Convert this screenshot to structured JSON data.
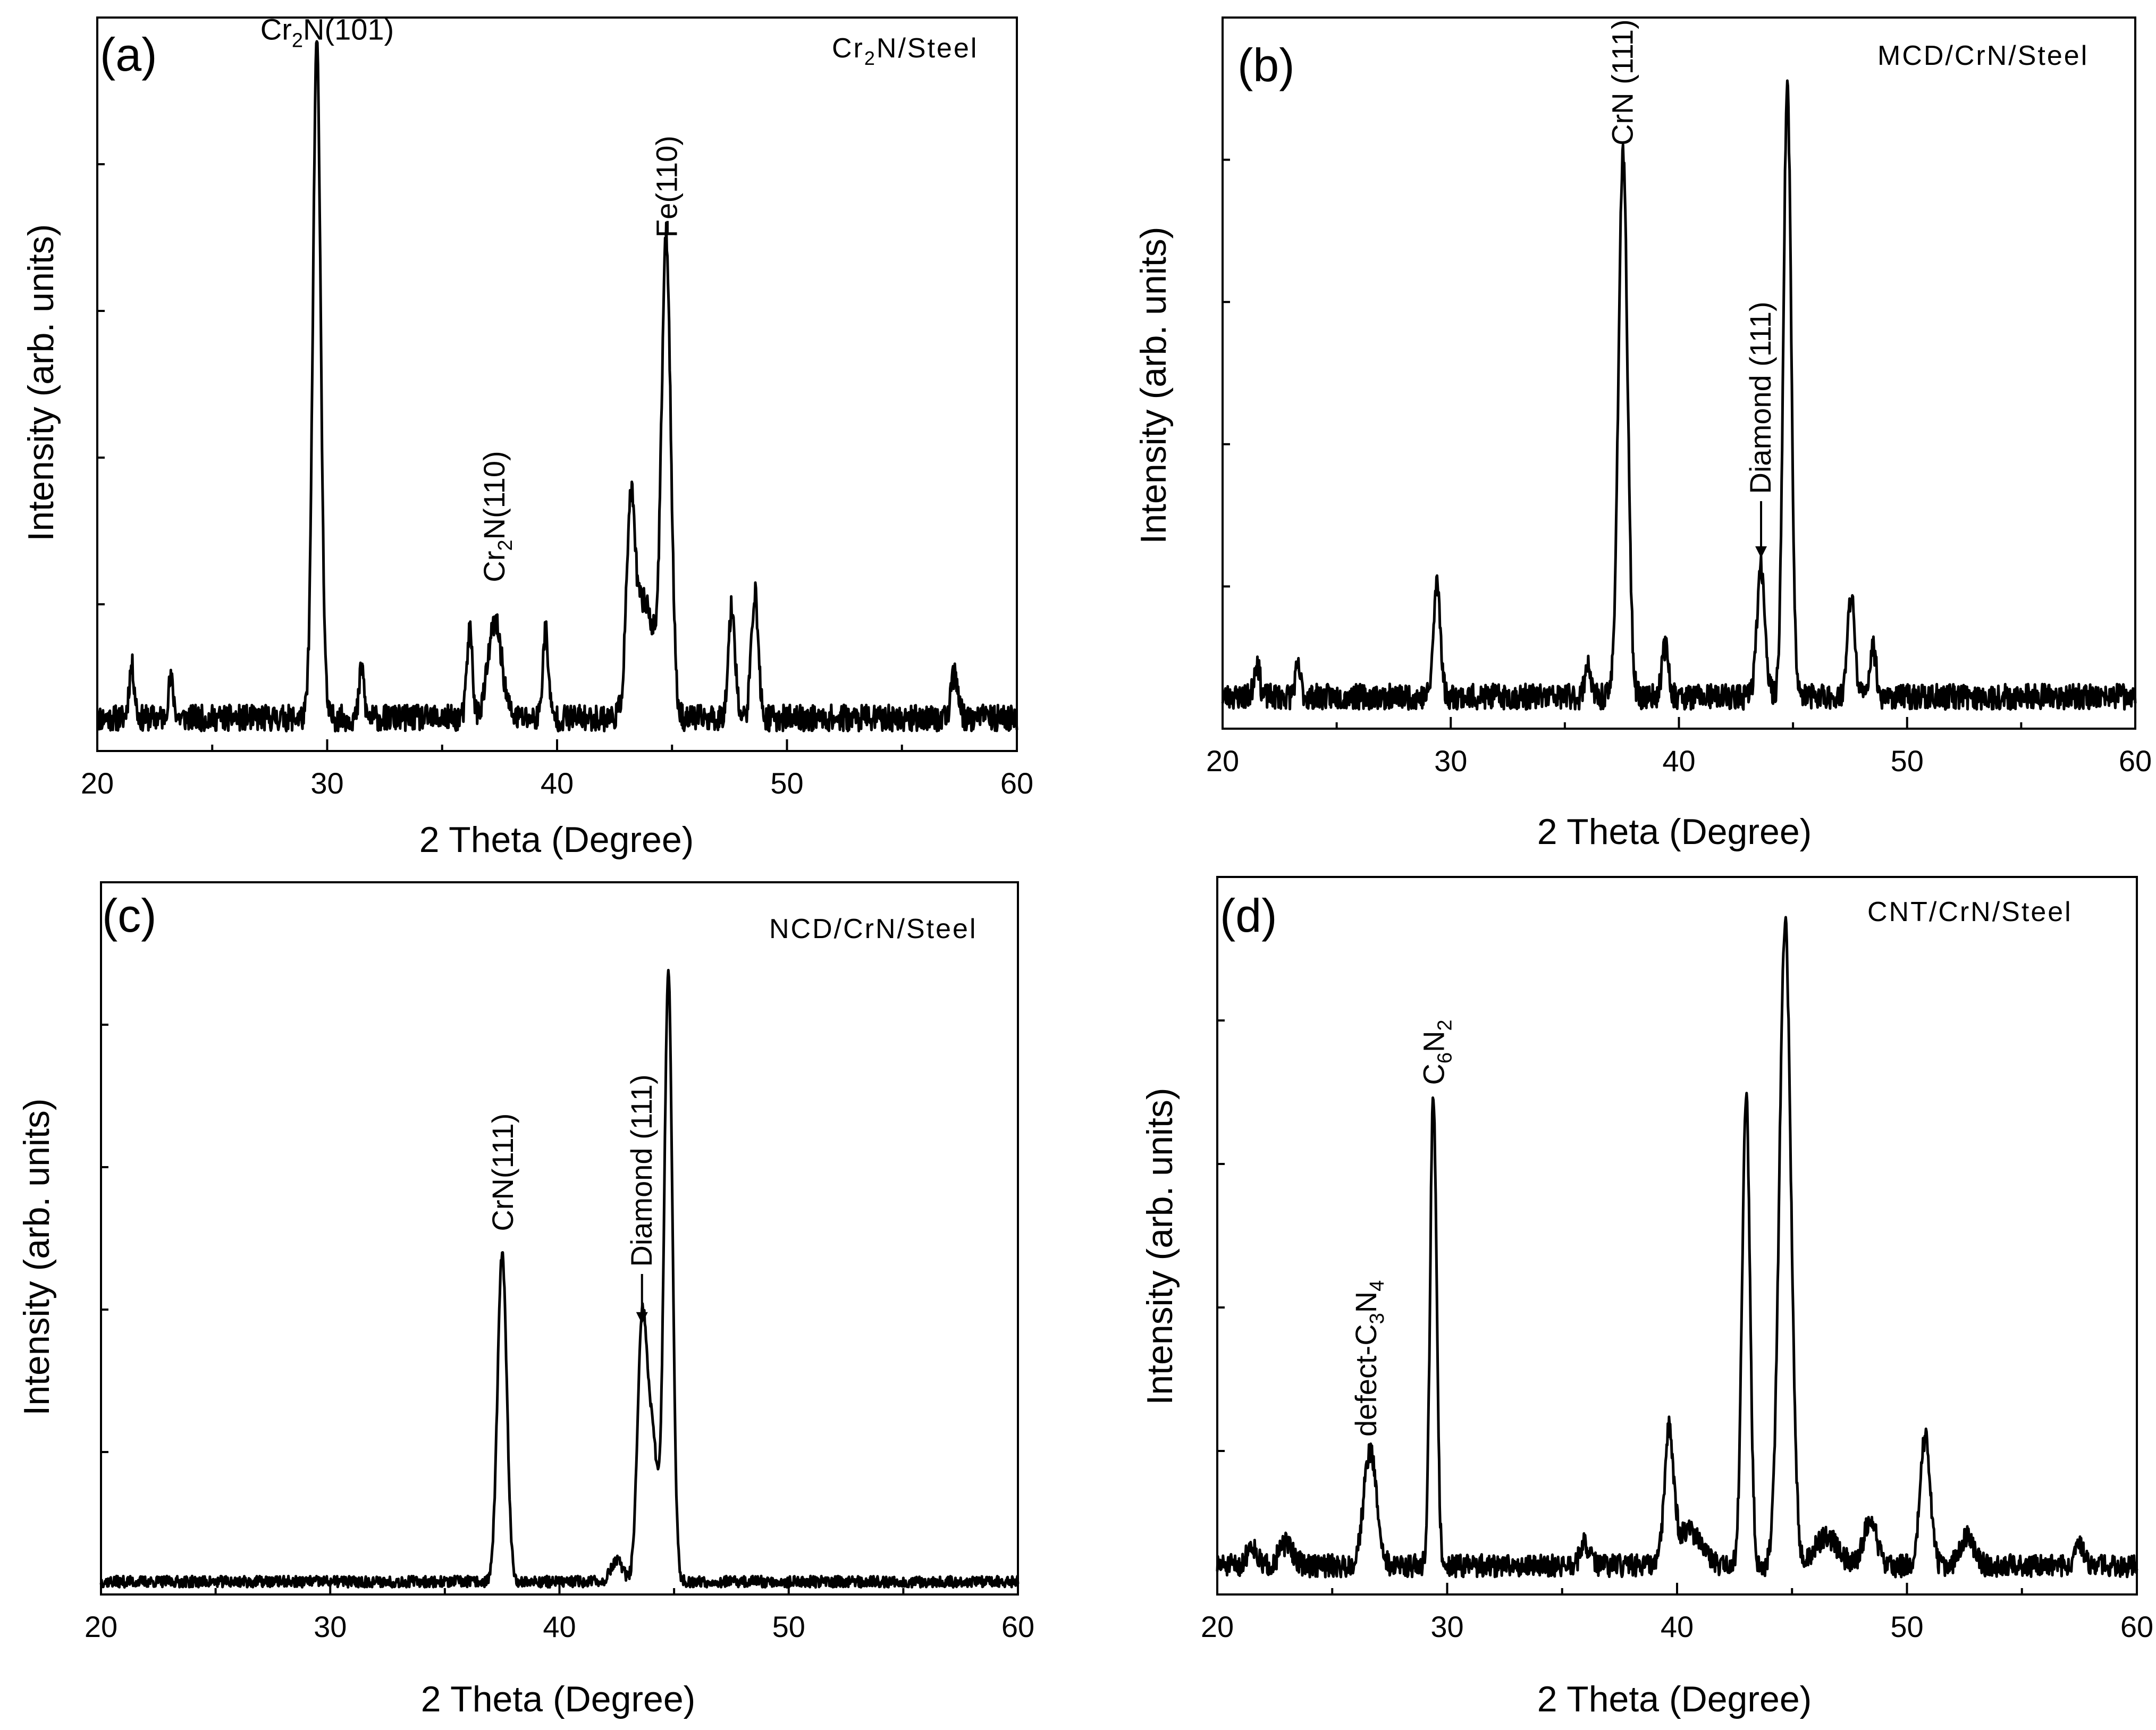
{
  "figure": {
    "background": "#ffffff",
    "line_color": "#000000"
  },
  "chart_data": [
    {
      "type": "line",
      "panel": "(a)",
      "sample": {
        "base": "Cr",
        "sub": "2",
        "rest": "N/Steel"
      },
      "xlabel": "2 Theta (Degree)",
      "ylabel": "Intensity (arb. units)",
      "xlim": [
        20,
        60
      ],
      "ylim": [
        0,
        100
      ],
      "xticks": [
        "20",
        "30",
        "40",
        "50",
        "60"
      ],
      "baseline": 4.5,
      "noise": 1.8,
      "seed": 11,
      "peaks": [
        {
          "x": 21.5,
          "h": 7,
          "w": 0.12
        },
        {
          "x": 23.2,
          "h": 5,
          "w": 0.12
        },
        {
          "x": 29.55,
          "h": 92,
          "w": 0.17
        },
        {
          "x": 31.5,
          "h": 7,
          "w": 0.1
        },
        {
          "x": 36.2,
          "h": 12,
          "w": 0.12
        },
        {
          "x": 37.3,
          "h": 13,
          "w": 0.3
        },
        {
          "x": 39.5,
          "h": 12,
          "w": 0.12
        },
        {
          "x": 43.2,
          "h": 24,
          "w": 0.18
        },
        {
          "x": 43.8,
          "h": 16,
          "w": 0.45
        },
        {
          "x": 44.75,
          "h": 64,
          "w": 0.2
        },
        {
          "x": 47.6,
          "h": 15,
          "w": 0.15
        },
        {
          "x": 48.6,
          "h": 17,
          "w": 0.15
        },
        {
          "x": 57.3,
          "h": 6,
          "w": 0.15
        }
      ],
      "annotations": [
        {
          "base": "Cr",
          "sub": "2",
          "rest": "N(101)",
          "x": 30.0,
          "y": 97,
          "rotate": false
        },
        {
          "base": "Cr",
          "sub": "2",
          "rest": "N(110)",
          "x": 37.3,
          "y": 23,
          "rotate": true
        },
        {
          "base": "Fe(110)",
          "sub": "",
          "rest": "",
          "x": 44.8,
          "y": 70,
          "rotate": true
        }
      ]
    },
    {
      "type": "line",
      "panel": "(b)",
      "sample": {
        "base": "MCD/CrN/Steel",
        "sub": "",
        "rest": ""
      },
      "xlabel": "2 Theta (Degree)",
      "ylabel": "Intensity (arb. units)",
      "xlim": [
        20,
        60
      ],
      "ylim": [
        0,
        100
      ],
      "xticks": [
        "20",
        "30",
        "40",
        "50",
        "60"
      ],
      "baseline": 4.5,
      "noise": 1.8,
      "seed": 23,
      "peaks": [
        {
          "x": 21.5,
          "h": 5,
          "w": 0.12
        },
        {
          "x": 23.3,
          "h": 4,
          "w": 0.12
        },
        {
          "x": 29.4,
          "h": 16,
          "w": 0.15
        },
        {
          "x": 36.0,
          "h": 5,
          "w": 0.12
        },
        {
          "x": 37.55,
          "h": 76,
          "w": 0.2
        },
        {
          "x": 39.4,
          "h": 7,
          "w": 0.15
        },
        {
          "x": 43.6,
          "h": 18,
          "w": 0.18
        },
        {
          "x": 44.75,
          "h": 86,
          "w": 0.17
        },
        {
          "x": 47.55,
          "h": 14,
          "w": 0.16
        },
        {
          "x": 48.5,
          "h": 7,
          "w": 0.14
        }
      ],
      "annotations": [
        {
          "base": "CrN (111)",
          "sub": "",
          "rest": "",
          "x": 37.55,
          "y": 82,
          "rotate": true
        },
        {
          "base": "Diamond (111)",
          "sub": "",
          "rest": "",
          "x": 43.6,
          "y": 33,
          "rotate": true
        }
      ],
      "arrows": [
        {
          "x": 43.6,
          "y_from": 32,
          "y_to": 24
        }
      ]
    },
    {
      "type": "line",
      "panel": "(c)",
      "sample": {
        "base": "NCD/CrN/Steel",
        "sub": "",
        "rest": ""
      },
      "xlabel": "2 Theta (Degree)",
      "ylabel": "Intensity (arb. units)",
      "xlim": [
        20,
        60
      ],
      "ylim": [
        0,
        100
      ],
      "xticks": [
        "20",
        "30",
        "40",
        "50",
        "60"
      ],
      "baseline": 1.8,
      "noise": 0.8,
      "seed": 37,
      "peaks": [
        {
          "x": 37.5,
          "h": 46,
          "w": 0.2
        },
        {
          "x": 42.5,
          "h": 3,
          "w": 0.25
        },
        {
          "x": 43.6,
          "h": 34,
          "w": 0.2
        },
        {
          "x": 44.05,
          "h": 20,
          "w": 0.25
        },
        {
          "x": 44.75,
          "h": 85,
          "w": 0.18
        }
      ],
      "annotations": [
        {
          "base": "CrN(111)",
          "sub": "",
          "rest": "",
          "x": 37.55,
          "y": 51,
          "rotate": true
        },
        {
          "base": "Diamond (111)",
          "sub": "",
          "rest": "",
          "x": 43.6,
          "y": 46,
          "rotate": true
        }
      ],
      "arrows": [
        {
          "x": 43.6,
          "y_from": 45,
          "y_to": 38
        }
      ]
    },
    {
      "type": "line",
      "panel": "(d)",
      "sample": {
        "base": "CNT/CrN/Steel",
        "sub": "",
        "rest": ""
      },
      "xlabel": "2 Theta (Degree)",
      "ylabel": "Intensity (arb. units)",
      "xlim": [
        20,
        60
      ],
      "ylim": [
        0,
        100
      ],
      "xticks": [
        "20",
        "30",
        "40",
        "50",
        "60"
      ],
      "baseline": 4.0,
      "noise": 1.6,
      "seed": 51,
      "peaks": [
        {
          "x": 21.5,
          "h": 3,
          "w": 0.2
        },
        {
          "x": 23.0,
          "h": 3,
          "w": 0.3
        },
        {
          "x": 26.65,
          "h": 16,
          "w": 0.28
        },
        {
          "x": 29.4,
          "h": 66,
          "w": 0.14
        },
        {
          "x": 36.0,
          "h": 3,
          "w": 0.2
        },
        {
          "x": 39.65,
          "h": 18,
          "w": 0.2
        },
        {
          "x": 40.5,
          "h": 5,
          "w": 0.5
        },
        {
          "x": 43.0,
          "h": 66,
          "w": 0.17
        },
        {
          "x": 44.7,
          "h": 90,
          "w": 0.25
        },
        {
          "x": 46.5,
          "h": 4,
          "w": 0.5
        },
        {
          "x": 48.4,
          "h": 6,
          "w": 0.3
        },
        {
          "x": 50.8,
          "h": 18,
          "w": 0.22
        },
        {
          "x": 52.6,
          "h": 4,
          "w": 0.3
        },
        {
          "x": 57.5,
          "h": 3,
          "w": 0.2
        }
      ],
      "annotations": [
        {
          "base": "defect-C",
          "sub": "3",
          "rest": "N",
          "sub2": "4",
          "x": 26.5,
          "y": 22,
          "rotate": true
        },
        {
          "base": "C",
          "sub": "6",
          "rest": "N",
          "sub2": "2",
          "x": 29.45,
          "y": 71,
          "rotate": true
        }
      ]
    }
  ]
}
